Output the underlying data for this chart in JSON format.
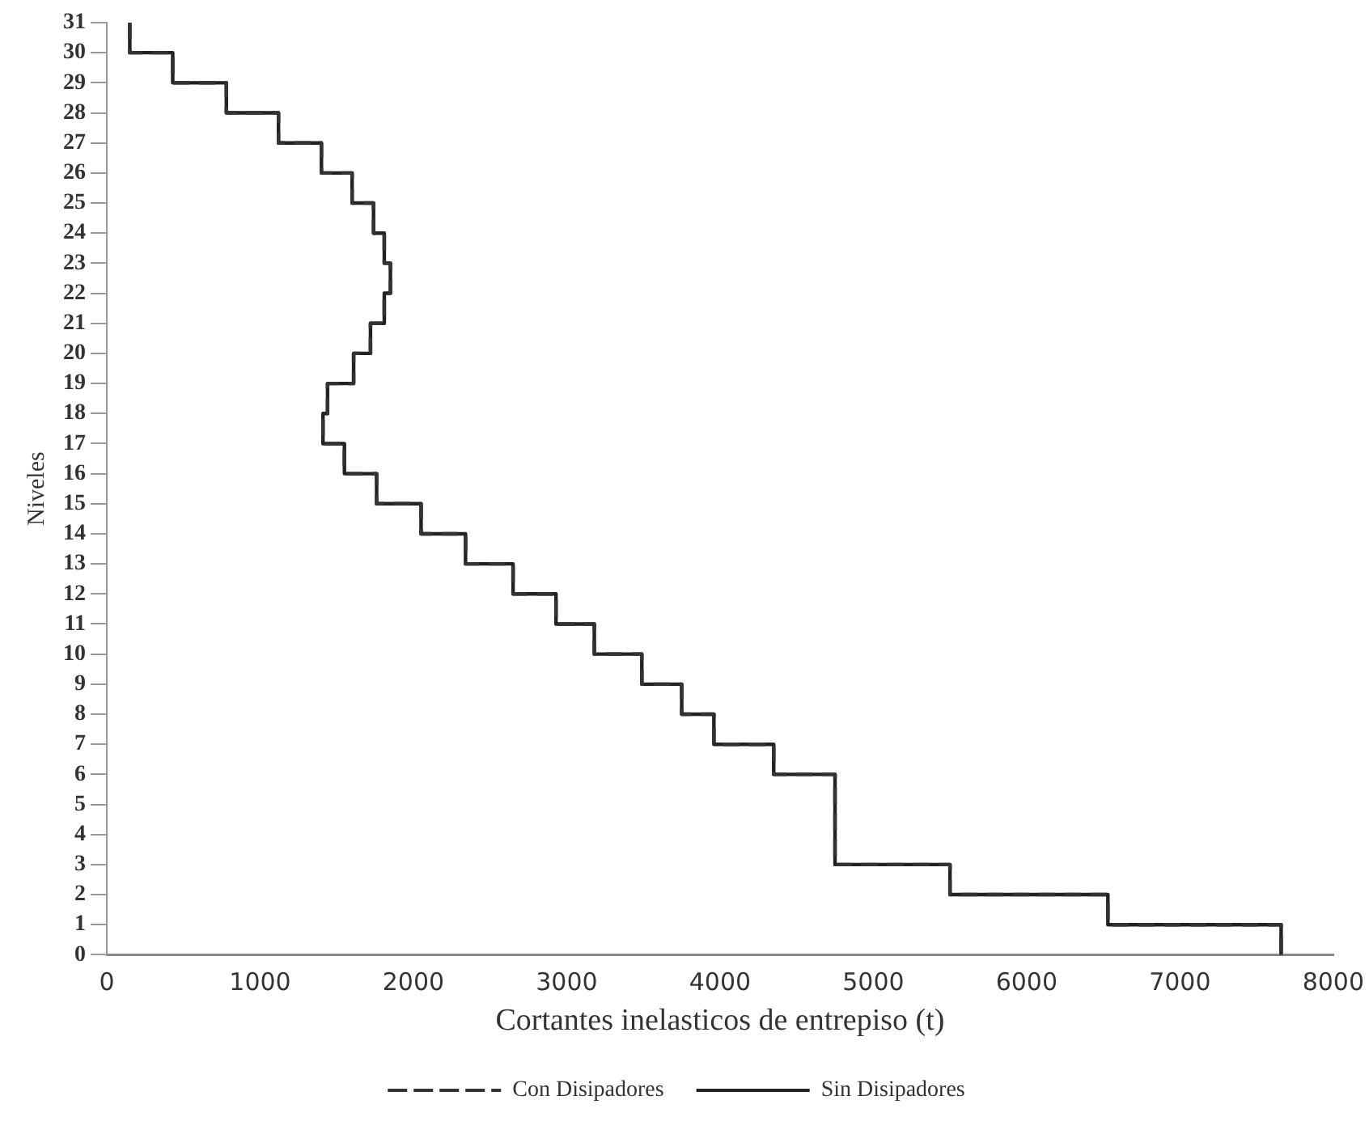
{
  "chart_data": {
    "type": "line",
    "xlabel": "Cortantes inelasticos de entrepiso (t)",
    "ylabel": "Niveles",
    "xlim": [
      0,
      8000
    ],
    "xticks": [
      0,
      1000,
      2000,
      3000,
      4000,
      5000,
      6000,
      7000,
      8000
    ],
    "ylim": [
      0,
      31
    ],
    "yticks": [
      0,
      1,
      2,
      3,
      4,
      5,
      6,
      7,
      8,
      9,
      10,
      11,
      12,
      13,
      14,
      15,
      16,
      17,
      18,
      19,
      20,
      21,
      22,
      23,
      24,
      25,
      26,
      27,
      28,
      29,
      30,
      31
    ],
    "grid": false,
    "legend": "bottom",
    "marker": "none",
    "series": [
      {
        "name": "Con Disipadores",
        "color": "#333333",
        "line_style": "dashed",
        "x": [
          150,
          150,
          430,
          430,
          780,
          780,
          1120,
          1120,
          1400,
          1400,
          1600,
          1600,
          1740,
          1740,
          1810,
          1810,
          1850,
          1850,
          1810,
          1810,
          1720,
          1720,
          1610,
          1610,
          1440,
          1440,
          1410,
          1410,
          1550,
          1550,
          1760,
          1760,
          2050,
          2050,
          2340,
          2340,
          2650,
          2650,
          2930,
          2930,
          3180,
          3180,
          3490,
          3490,
          3750,
          3750,
          3960,
          3960,
          4350,
          4350,
          4750,
          4750,
          4750,
          4750,
          4750,
          4750,
          5500,
          5500,
          6530,
          6530,
          7660,
          7660
        ],
        "values": [
          31,
          30,
          30,
          29,
          29,
          28,
          28,
          27,
          27,
          26,
          26,
          25,
          25,
          24,
          24,
          23,
          23,
          22,
          22,
          21,
          21,
          20,
          20,
          19,
          19,
          18,
          18,
          17,
          17,
          16,
          16,
          15,
          15,
          14,
          14,
          13,
          13,
          12,
          12,
          11,
          11,
          10,
          10,
          9,
          9,
          8,
          8,
          7,
          7,
          6,
          6,
          5,
          5,
          4,
          4,
          3,
          3,
          2,
          2,
          1,
          1,
          0
        ]
      },
      {
        "name": "Sin Disipadores",
        "color": "#222222",
        "line_style": "solid",
        "x": [
          150,
          150,
          430,
          430,
          780,
          780,
          1120,
          1120,
          1400,
          1400,
          1600,
          1600,
          1740,
          1740,
          1810,
          1810,
          1850,
          1850,
          1810,
          1810,
          1720,
          1720,
          1610,
          1610,
          1440,
          1440,
          1410,
          1410,
          1550,
          1550,
          1760,
          1760,
          2050,
          2050,
          2340,
          2340,
          2650,
          2650,
          2930,
          2930,
          3180,
          3180,
          3490,
          3490,
          3750,
          3750,
          3960,
          3960,
          4350,
          4350,
          4750,
          4750,
          4750,
          4750,
          4750,
          4750,
          5500,
          5500,
          6530,
          6530,
          7660,
          7660
        ],
        "values": [
          31,
          30,
          30,
          29,
          29,
          28,
          28,
          27,
          27,
          26,
          26,
          25,
          25,
          24,
          24,
          23,
          23,
          22,
          22,
          21,
          21,
          20,
          20,
          19,
          19,
          18,
          18,
          17,
          17,
          16,
          16,
          15,
          15,
          14,
          14,
          13,
          13,
          12,
          12,
          11,
          11,
          10,
          10,
          9,
          9,
          8,
          8,
          7,
          7,
          6,
          6,
          5,
          5,
          4,
          4,
          3,
          3,
          2,
          2,
          1,
          1,
          0
        ]
      }
    ]
  }
}
